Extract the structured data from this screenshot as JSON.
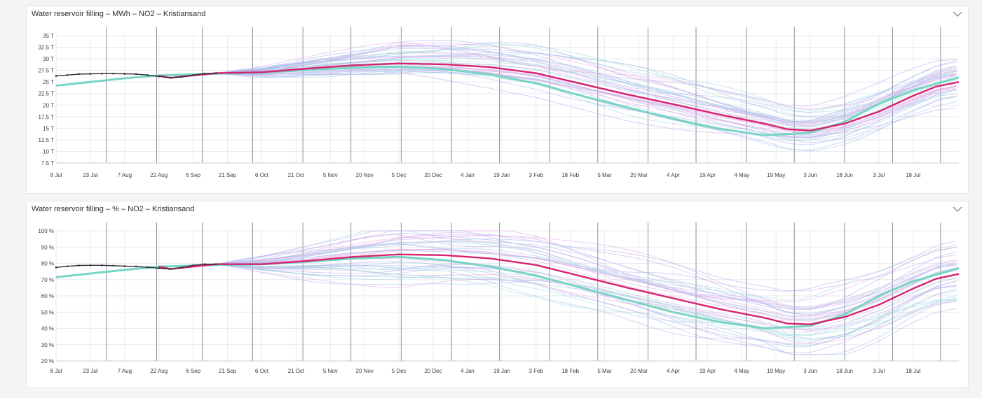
{
  "colors": {
    "history": "#2d2d33",
    "median": "#d4236f",
    "normal": "#78d4c4",
    "ensemble": [
      "#a8b9ee",
      "#e8a8e6",
      "#9fd9dd",
      "#b9a9ee"
    ],
    "grid": "#e7eaee",
    "vline": "#8a8f98"
  },
  "icons": {
    "collapse": "chevron-down-icon"
  },
  "panels": [
    {
      "title": "Water reservoir filling – MWh – NO2 – Kristiansand",
      "chart_data": {
        "type": "line",
        "title": "Water reservoir filling – MWh – NO2 – Kristiansand",
        "x_ticks": [
          "8 Jul",
          "23 Jul",
          "7 Aug",
          "22 Aug",
          "6 Sep",
          "21 Sep",
          "6 Oct",
          "21 Oct",
          "5 Nov",
          "20 Nov",
          "5 Dec",
          "20 Dec",
          "4 Jan",
          "19 Jan",
          "3 Feb",
          "18 Feb",
          "5 Mar",
          "20 Mar",
          "4 Apr",
          "19 Apr",
          "4 May",
          "19 May",
          "3 Jun",
          "18 Jun",
          "3 Jul",
          "18 Jul"
        ],
        "y_ticks": [
          "7.5 T",
          "10 T",
          "12.5 T",
          "15 T",
          "17.5 T",
          "20 T",
          "22.5 T",
          "25 T",
          "27.5 T",
          "30 T",
          "32.5 T",
          "35 T"
        ],
        "ylim": [
          7500,
          35000
        ],
        "xlim": [
          0,
          395
        ],
        "grid": true,
        "legend": "none",
        "series": [
          {
            "role": "history",
            "x": [
              0,
              5,
              10,
              15,
              20,
              25,
              30,
              35,
              40,
              45,
              50,
              55,
              60,
              65,
              70
            ],
            "values": [
              26300,
              26500,
              26700,
              26750,
              26800,
              26800,
              26750,
              26700,
              26500,
              26200,
              25900,
              26100,
              26500,
              26800,
              26900
            ]
          },
          {
            "role": "normal",
            "x": [
              0,
              30,
              45,
              70,
              90,
              110,
              130,
              150,
              170,
              190,
              210,
              230,
              250,
              270,
              290,
              310,
              330,
              345,
              360,
              375,
              395
            ],
            "values": [
              24200,
              25800,
              26400,
              26800,
              27000,
              27600,
              28100,
              28300,
              27800,
              26600,
              24700,
              22000,
              19500,
              17000,
              14900,
              13500,
              14000,
              16400,
              20300,
              23200,
              26000
            ]
          },
          {
            "role": "median",
            "x": [
              45,
              50,
              60,
              70,
              90,
              110,
              130,
              150,
              170,
              190,
              210,
              230,
              250,
              270,
              290,
              310,
              320,
              330,
              345,
              360,
              375,
              385,
              395
            ],
            "values": [
              26300,
              25900,
              26400,
              26900,
              27100,
              27900,
              28600,
              29000,
              28800,
              28200,
              26900,
              24600,
              22300,
              20200,
              18000,
              16000,
              14800,
              14500,
              16000,
              18600,
              22000,
              24000,
              25000
            ]
          }
        ],
        "ensemble": {
          "count": 36,
          "start_x": 70,
          "end_x": 395,
          "spread": [
            0.03,
            0.28
          ]
        }
      }
    },
    {
      "title": "Water reservoir filling – % – NO2 – Kristiansand",
      "chart_data": {
        "type": "line",
        "title": "Water reservoir filling – % – NO2 – Kristiansand",
        "x_ticks": [
          "8 Jul",
          "23 Jul",
          "7 Aug",
          "22 Aug",
          "6 Sep",
          "21 Sep",
          "6 Oct",
          "21 Oct",
          "5 Nov",
          "20 Nov",
          "5 Dec",
          "20 Dec",
          "4 Jan",
          "19 Jan",
          "3 Feb",
          "18 Feb",
          "5 Mar",
          "20 Mar",
          "4 Apr",
          "19 Apr",
          "4 May",
          "19 May",
          "3 Jun",
          "18 Jun",
          "3 Jul",
          "18 Jul"
        ],
        "y_ticks": [
          "20 %",
          "30 %",
          "40 %",
          "50 %",
          "60 %",
          "70 %",
          "80 %",
          "90 %",
          "100 %"
        ],
        "ylim": [
          20,
          100
        ],
        "xlim": [
          0,
          395
        ],
        "grid": true,
        "legend": "none",
        "series": [
          {
            "role": "history",
            "x": [
              0,
              5,
              10,
              15,
              20,
              25,
              30,
              35,
              40,
              45,
              50,
              55,
              60,
              65,
              70
            ],
            "values": [
              77.5,
              78.2,
              78.7,
              78.8,
              78.8,
              78.6,
              78.3,
              78.1,
              77.6,
              77.0,
              76.5,
              77.5,
              78.8,
              79.5,
              79.5
            ]
          },
          {
            "role": "normal",
            "x": [
              0,
              30,
              45,
              70,
              90,
              110,
              130,
              150,
              170,
              190,
              210,
              230,
              250,
              270,
              290,
              310,
              330,
              345,
              360,
              375,
              395
            ],
            "values": [
              71.5,
              76,
              78,
              79,
              79.5,
              81,
              83,
              84,
              82,
              78,
              72.5,
              65,
              57.5,
              50,
              44,
              40,
              41.5,
              48.5,
              60,
              69,
              77
            ]
          },
          {
            "role": "median",
            "x": [
              45,
              50,
              60,
              70,
              90,
              110,
              130,
              150,
              170,
              190,
              210,
              230,
              250,
              270,
              290,
              310,
              320,
              330,
              345,
              360,
              375,
              385,
              395
            ],
            "values": [
              78,
              76.5,
              78,
              79.5,
              79.5,
              81.5,
              84,
              85.5,
              85,
              83,
              79,
              72,
              65,
              58.5,
              52,
              46.5,
              43,
              42.5,
              47,
              54.5,
              64.5,
              70.5,
              73.5
            ]
          }
        ],
        "ensemble": {
          "count": 36,
          "start_x": 70,
          "end_x": 395,
          "spread": [
            0.05,
            0.35
          ]
        }
      }
    }
  ]
}
